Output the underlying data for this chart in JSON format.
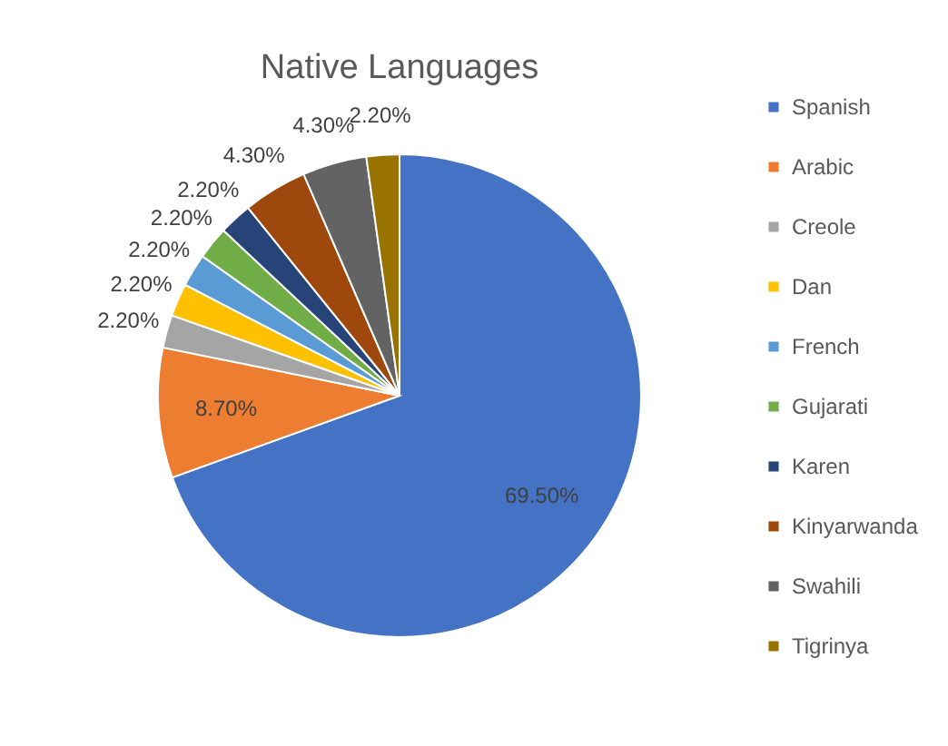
{
  "chart_data": {
    "type": "pie",
    "title": "Native Languages",
    "categories": [
      "Spanish",
      "Arabic",
      "Creole",
      "Dan",
      "French",
      "Gujarati",
      "Karen",
      "Kinyarwanda",
      "Swahili",
      "Tigrinya"
    ],
    "values": [
      69.5,
      8.7,
      2.2,
      2.2,
      2.2,
      2.2,
      2.2,
      4.3,
      4.3,
      2.2
    ],
    "value_labels": [
      "69.50%",
      "8.70%",
      "2.20%",
      "2.20%",
      "2.20%",
      "2.20%",
      "2.20%",
      "4.30%",
      "4.30%",
      "2.20%"
    ],
    "colors": [
      "#4472c4",
      "#ed7d31",
      "#a5a5a5",
      "#ffc000",
      "#5b9bd5",
      "#70ad47",
      "#264478",
      "#9e480e",
      "#636363",
      "#997300"
    ],
    "legend": "right"
  }
}
